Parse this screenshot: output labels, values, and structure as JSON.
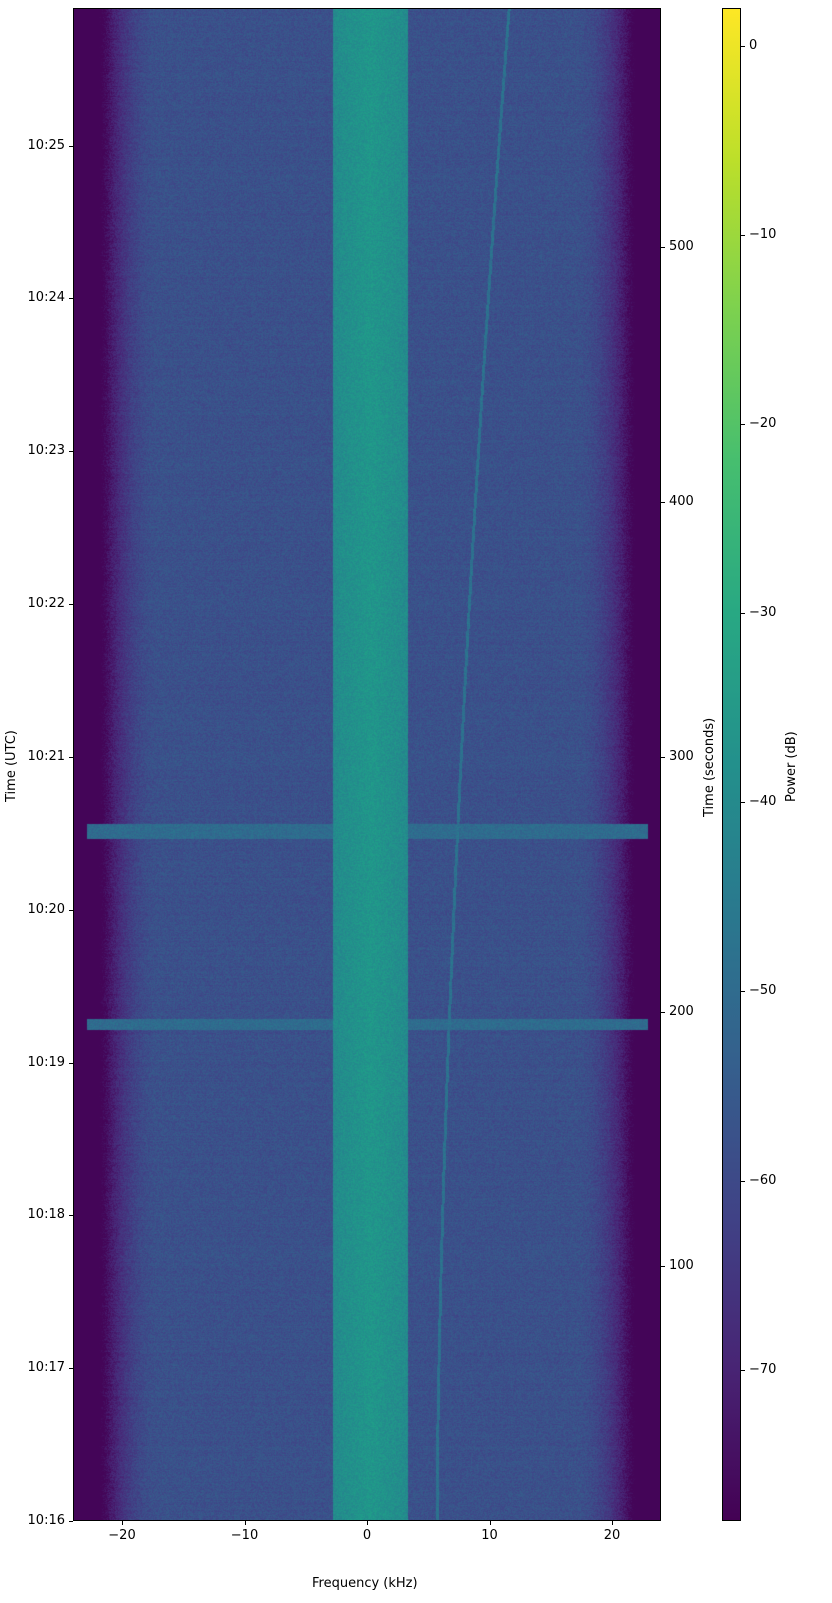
{
  "chart_data": {
    "type": "heatmap",
    "title": "",
    "xlabel": "Frequency (kHz)",
    "ylabel_left": "Time (UTC)",
    "ylabel_right": "Time (seconds)",
    "colorbar_label": "Power (dB)",
    "colormap": "viridis",
    "xlim": [
      -24,
      24
    ],
    "ylim_seconds": [
      0,
      594
    ],
    "clim": [
      -78,
      2
    ],
    "x_ticks": [
      -20,
      -10,
      0,
      10,
      20
    ],
    "x_tick_labels": [
      "−20",
      "−10",
      "0",
      "10",
      "20"
    ],
    "y_left_ticks_seconds": [
      0,
      60,
      120,
      180,
      240,
      300,
      360,
      420,
      480,
      540
    ],
    "y_left_tick_labels": [
      "10:16",
      "10:17",
      "10:18",
      "10:19",
      "10:20",
      "10:21",
      "10:22",
      "10:23",
      "10:24",
      "10:25"
    ],
    "y_right_ticks": [
      100,
      200,
      300,
      400,
      500
    ],
    "y_right_tick_labels": [
      "100",
      "200",
      "300",
      "400",
      "500"
    ],
    "colorbar_ticks": [
      0,
      -10,
      -20,
      -30,
      -40,
      -50,
      -60,
      -70
    ],
    "colorbar_tick_labels": [
      "0",
      "−10",
      "−20",
      "−30",
      "−40",
      "−50",
      "−60",
      "−70"
    ],
    "features": {
      "noise_floor_db": -58,
      "edge_rolloff_khz": 21,
      "center_band_khz": [
        -2.8,
        3.3
      ],
      "center_band_db": -36,
      "drifting_carrier_khz": {
        "start_s": 0,
        "start_khz": 5.7,
        "end_s": 594,
        "end_khz": 11.6,
        "db": -48
      },
      "horizontal_bands_s": [
        [
          268,
          274
        ],
        [
          193,
          197
        ]
      ]
    }
  }
}
